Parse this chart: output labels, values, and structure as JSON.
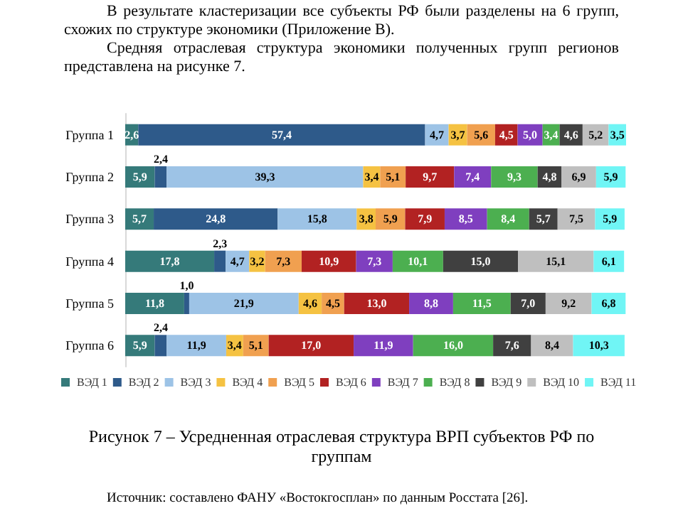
{
  "chart_data": {
    "type": "bar",
    "orientation": "horizontal",
    "stacked": true,
    "title": "Рисунок 7 – Усредненная отраслевая структура ВРП субъектов РФ по группам",
    "annotations": [
      "В результате кластеризации все субъекты РФ были разделены на 6 групп, схожих по структуре экономики (Приложение В).",
      "Средняя отраслевая структура экономики полученных групп регионов представлена на рисунке 7.",
      "Источник: составлено ФАНУ «Востокгосплан» по данным Росстата [26]."
    ],
    "categories": [
      "Группа 1",
      "Группа 2",
      "Группа 3",
      "Группа 4",
      "Группа 5",
      "Группа 6"
    ],
    "series": [
      {
        "name": "ВЭД 1",
        "color": "#357a7a",
        "values": [
          2.6,
          5.9,
          5.7,
          17.8,
          11.8,
          5.9
        ],
        "value_labels": [
          "2,6",
          "5,9",
          "5,7",
          "17,8",
          "11,8",
          "5,9"
        ]
      },
      {
        "name": "ВЭД 2",
        "color": "#2e5a8a",
        "values": [
          57.4,
          2.4,
          24.8,
          2.3,
          1.0,
          2.4
        ],
        "value_labels": [
          "57,4",
          "2,4",
          "24,8",
          "2,3",
          "1,0",
          "2,4"
        ]
      },
      {
        "name": "ВЭД 3",
        "color": "#9dc3e6",
        "values": [
          4.7,
          39.3,
          15.8,
          4.7,
          21.9,
          11.9
        ],
        "value_labels": [
          "4,7",
          "39,3",
          "15,8",
          "4,7",
          "21,9",
          "11,9"
        ]
      },
      {
        "name": "ВЭД 4",
        "color": "#f5c242",
        "values": [
          3.7,
          3.4,
          3.8,
          3.2,
          4.6,
          3.4
        ],
        "value_labels": [
          "3,7",
          "3,4",
          "3,8",
          "3,2",
          "4,6",
          "3,4"
        ]
      },
      {
        "name": "ВЭД 5",
        "color": "#f0a050",
        "values": [
          5.6,
          5.1,
          5.9,
          7.3,
          4.5,
          5.1
        ],
        "value_labels": [
          "5,6",
          "5,1",
          "5,9",
          "7,3",
          "4,5",
          "5,1"
        ]
      },
      {
        "name": "ВЭД 6",
        "color": "#b22222",
        "values": [
          4.5,
          9.7,
          7.9,
          10.9,
          13.0,
          17.0
        ],
        "value_labels": [
          "4,5",
          "9,7",
          "7,9",
          "10,9",
          "13,0",
          "17,0"
        ]
      },
      {
        "name": "ВЭД 7",
        "color": "#7f3fbf",
        "values": [
          5.0,
          7.4,
          8.5,
          7.3,
          8.8,
          11.9
        ],
        "value_labels": [
          "5,0",
          "7,4",
          "8,5",
          "7,3",
          "8,8",
          "11,9"
        ]
      },
      {
        "name": "ВЭД 8",
        "color": "#4caf50",
        "values": [
          3.4,
          9.3,
          8.4,
          10.1,
          11.5,
          16.0
        ],
        "value_labels": [
          "3,4",
          "9,3",
          "8,4",
          "10,1",
          "11,5",
          "16,0"
        ]
      },
      {
        "name": "ВЭД 9",
        "color": "#404040",
        "values": [
          4.6,
          4.8,
          5.7,
          15.0,
          7.0,
          7.6
        ],
        "value_labels": [
          "4,6",
          "4,8",
          "5,7",
          "15,0",
          "7,0",
          "7,6"
        ]
      },
      {
        "name": "ВЭД 10",
        "color": "#bfbfbf",
        "values": [
          5.2,
          6.9,
          7.5,
          15.1,
          9.2,
          8.4
        ],
        "value_labels": [
          "5,2",
          "6,9",
          "7,5",
          "15,1",
          "9,2",
          "8,4"
        ]
      },
      {
        "name": "ВЭД 11",
        "color": "#70f5f5",
        "values": [
          3.5,
          5.9,
          5.9,
          6.1,
          6.8,
          10.3
        ],
        "value_labels": [
          "3,5",
          "5,9",
          "5,9",
          "6,1",
          "6,8",
          "10,3"
        ]
      }
    ],
    "legend": "bottom"
  }
}
